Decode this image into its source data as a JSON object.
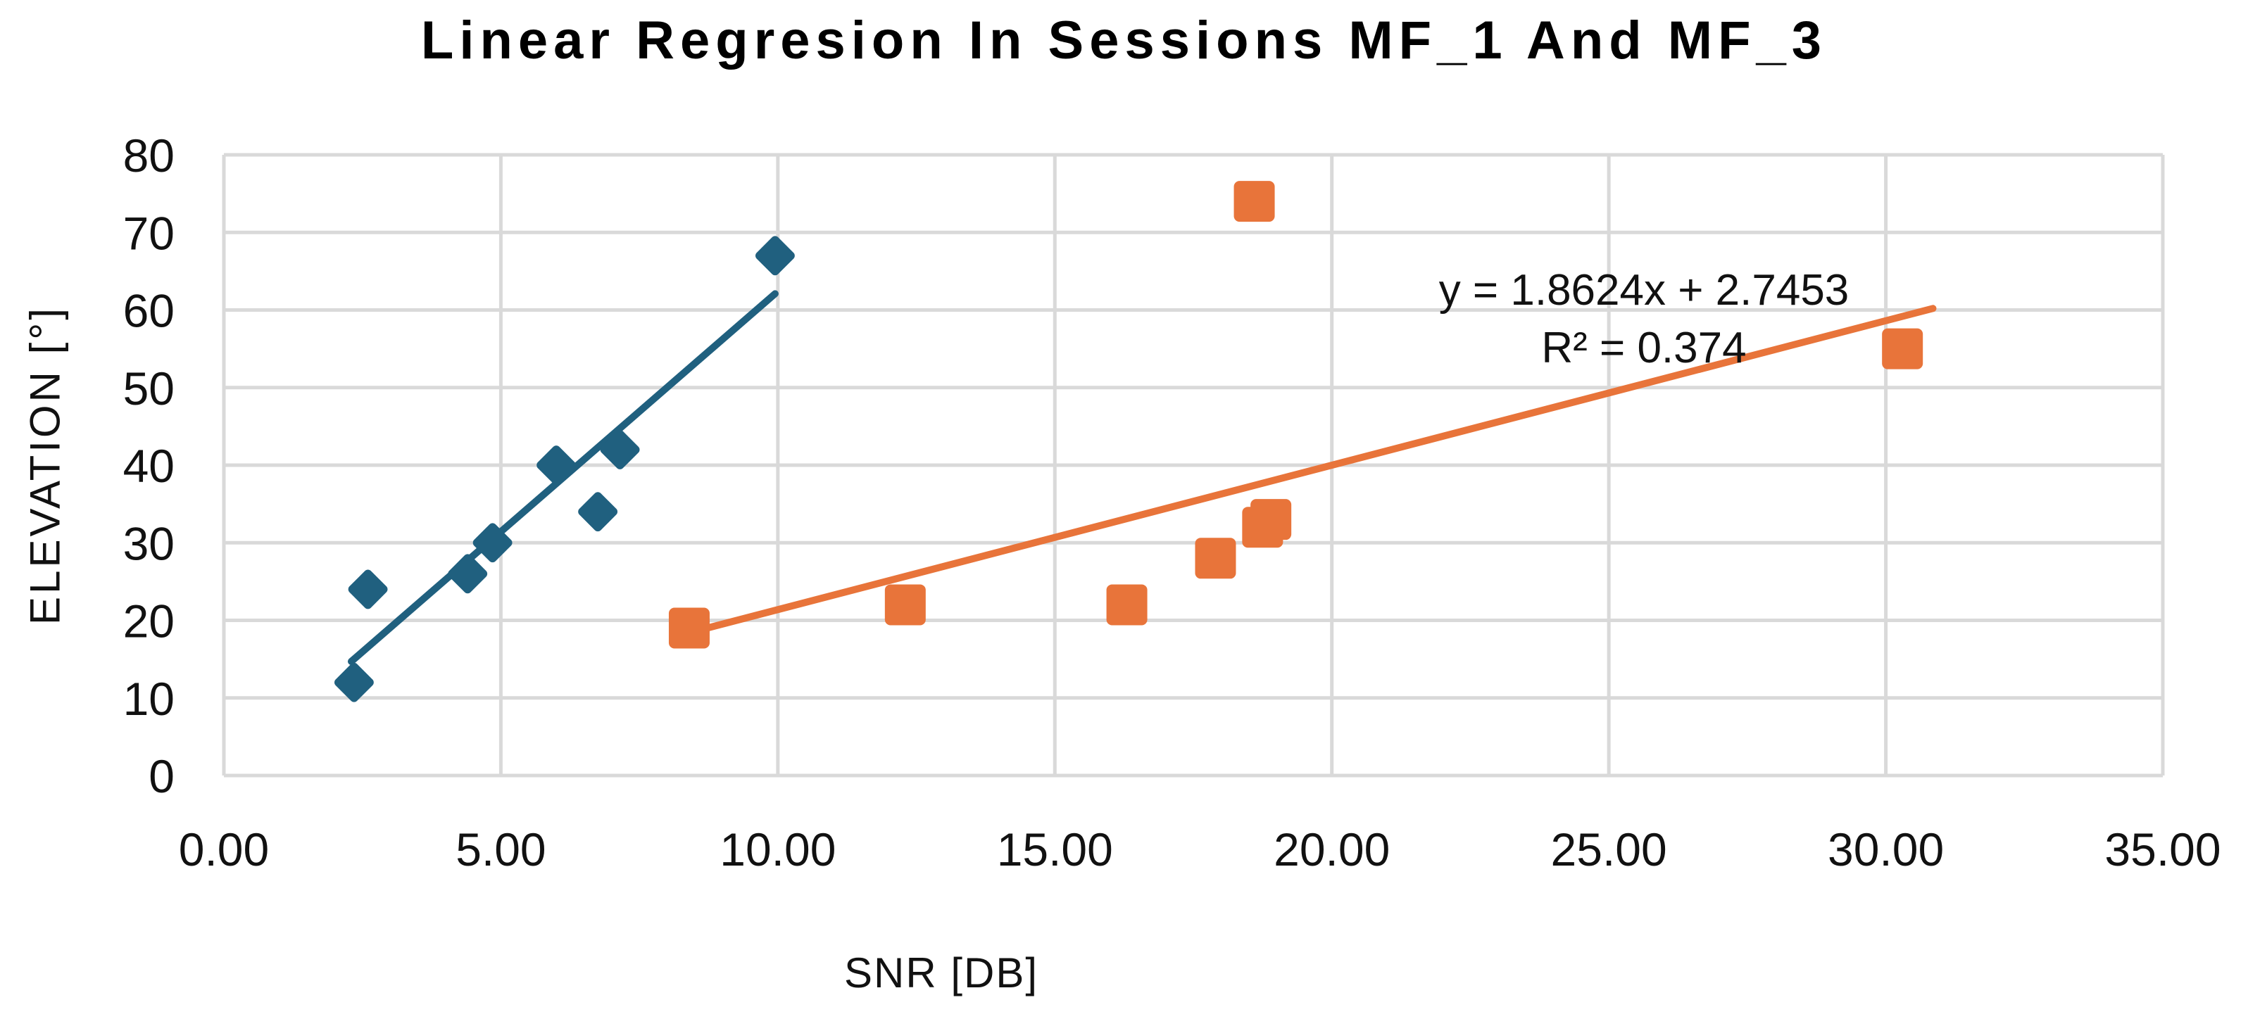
{
  "chart_data": {
    "type": "scatter",
    "title": "Linear Regresion In Sessions MF_1 And MF_3",
    "xlabel": "SNR [DB]",
    "ylabel": "ELEVATION [°]",
    "xlim": [
      0,
      35
    ],
    "ylim": [
      0,
      80
    ],
    "grid": true,
    "grid_color": "#D9D9D9",
    "legend_position": "none",
    "x_ticks": [
      {
        "value": 0,
        "label": "0.00"
      },
      {
        "value": 5,
        "label": "5.00"
      },
      {
        "value": 10,
        "label": "10.00"
      },
      {
        "value": 15,
        "label": "15.00"
      },
      {
        "value": 20,
        "label": "20.00"
      },
      {
        "value": 25,
        "label": "25.00"
      },
      {
        "value": 30,
        "label": "30.00"
      },
      {
        "value": 35,
        "label": "35.00"
      }
    ],
    "y_ticks": [
      {
        "value": 0,
        "label": "0"
      },
      {
        "value": 10,
        "label": "10"
      },
      {
        "value": 20,
        "label": "20"
      },
      {
        "value": 30,
        "label": "30"
      },
      {
        "value": 40,
        "label": "40"
      },
      {
        "value": 50,
        "label": "50"
      },
      {
        "value": 60,
        "label": "60"
      },
      {
        "value": 70,
        "label": "70"
      },
      {
        "value": 80,
        "label": "80"
      }
    ],
    "series": [
      {
        "name": "MF_1",
        "marker": "diamond",
        "color": "#20607F",
        "points": [
          [
            2.35,
            12
          ],
          [
            2.6,
            24
          ],
          [
            4.4,
            26
          ],
          [
            4.85,
            30
          ],
          [
            6.0,
            40
          ],
          [
            6.75,
            34
          ],
          [
            7.15,
            42
          ],
          [
            9.95,
            67
          ]
        ]
      },
      {
        "name": "MF_3",
        "marker": "square",
        "color": "#E8743A",
        "points": [
          [
            8.4,
            19
          ],
          [
            12.3,
            22
          ],
          [
            16.3,
            22
          ],
          [
            17.9,
            28
          ],
          [
            18.6,
            74
          ],
          [
            18.75,
            32
          ],
          [
            18.9,
            33
          ],
          [
            30.3,
            55
          ]
        ]
      }
    ],
    "trendlines": [
      {
        "series": "MF_1",
        "color": "#20607F",
        "start": [
          2.3,
          14.7
        ],
        "end": [
          9.95,
          62.1
        ]
      },
      {
        "series": "MF_3",
        "color": "#E8743A",
        "start": [
          8.4,
          18.4
        ],
        "end": [
          30.85,
          60.2
        ]
      }
    ],
    "annotation": {
      "line1": "y = 1.8624x + 2.7453",
      "line2": "R² = 0.374"
    }
  }
}
